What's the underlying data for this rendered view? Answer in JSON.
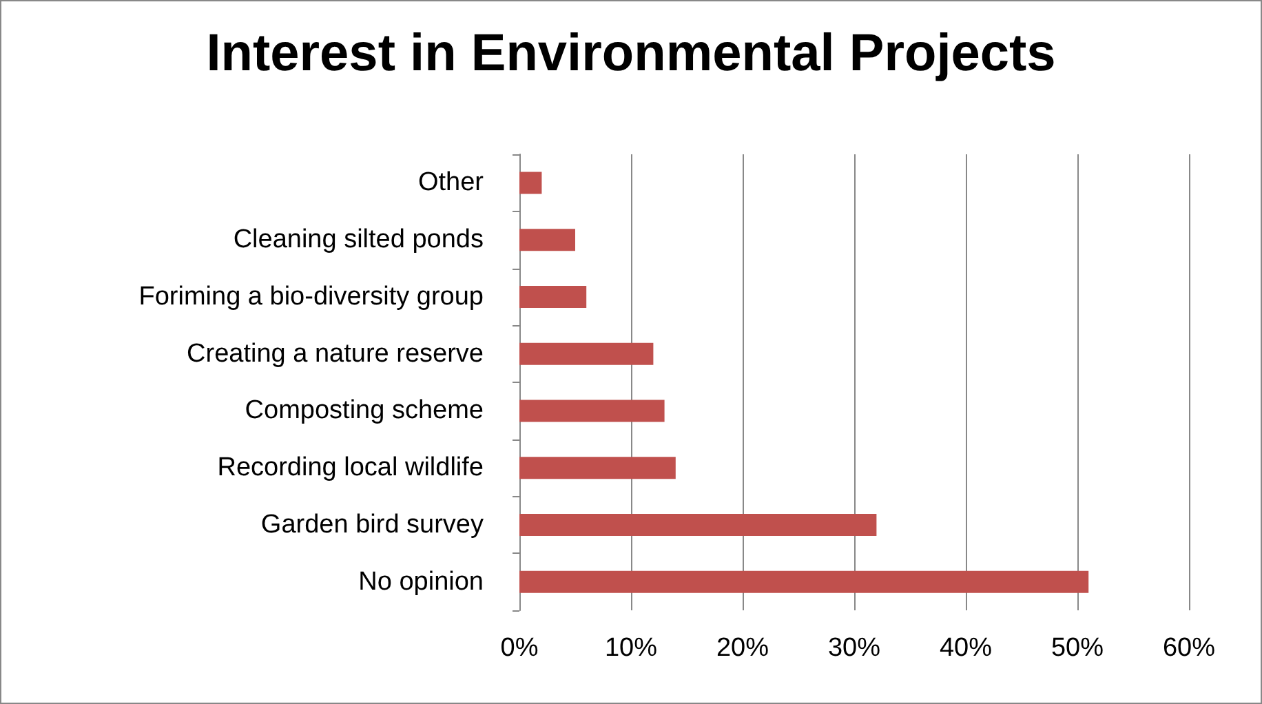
{
  "chart_data": {
    "type": "bar",
    "orientation": "horizontal",
    "title": "Interest in Environmental Projects",
    "categories": [
      "Other",
      "Cleaning silted ponds",
      "Foriming a bio-diversity group",
      "Creating a nature reserve",
      "Composting scheme",
      "Recording local wildlife",
      "Garden bird survey",
      "No opinion"
    ],
    "values": [
      2,
      5,
      6,
      12,
      13,
      14,
      32,
      51
    ],
    "color": "#c0504d",
    "xlim": [
      0,
      60
    ],
    "xticks": [
      {
        "value": 0,
        "label": "0%"
      },
      {
        "value": 10,
        "label": "10%"
      },
      {
        "value": 20,
        "label": "20%"
      },
      {
        "value": 30,
        "label": "30%"
      },
      {
        "value": 40,
        "label": "40%"
      },
      {
        "value": 50,
        "label": "50%"
      },
      {
        "value": 60,
        "label": "60%"
      }
    ],
    "grid": "x"
  }
}
